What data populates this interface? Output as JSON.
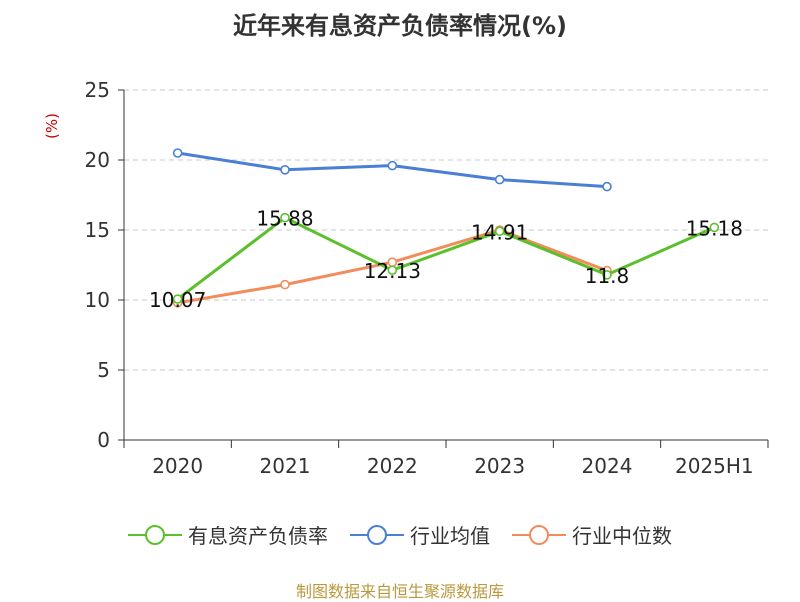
{
  "chart_data": {
    "type": "line",
    "title": "近年来有息资产负债率情况(%)",
    "ylabel": "(%)",
    "categories": [
      "2020",
      "2021",
      "2022",
      "2023",
      "2024",
      "2025H1"
    ],
    "ylim": [
      0,
      25
    ],
    "yticks": [
      0,
      5,
      10,
      15,
      20,
      25
    ],
    "grid": true,
    "legend_position": "bottom",
    "series": [
      {
        "name": "有息资产负债率",
        "color": "#5cc02c",
        "values": [
          10.07,
          15.88,
          12.13,
          14.91,
          11.8,
          15.18
        ],
        "labels": [
          "10.07",
          "15.88",
          "12.13",
          "14.91",
          "11.8",
          "15.18"
        ]
      },
      {
        "name": "行业均值",
        "color": "#4a7fd6",
        "values": [
          20.5,
          19.3,
          19.6,
          18.6,
          18.1,
          null
        ]
      },
      {
        "name": "行业中位数",
        "color": "#f28c5a",
        "values": [
          9.8,
          11.1,
          12.7,
          15.0,
          12.1,
          null
        ]
      }
    ]
  },
  "source": "制图数据来自恒生聚源数据库"
}
